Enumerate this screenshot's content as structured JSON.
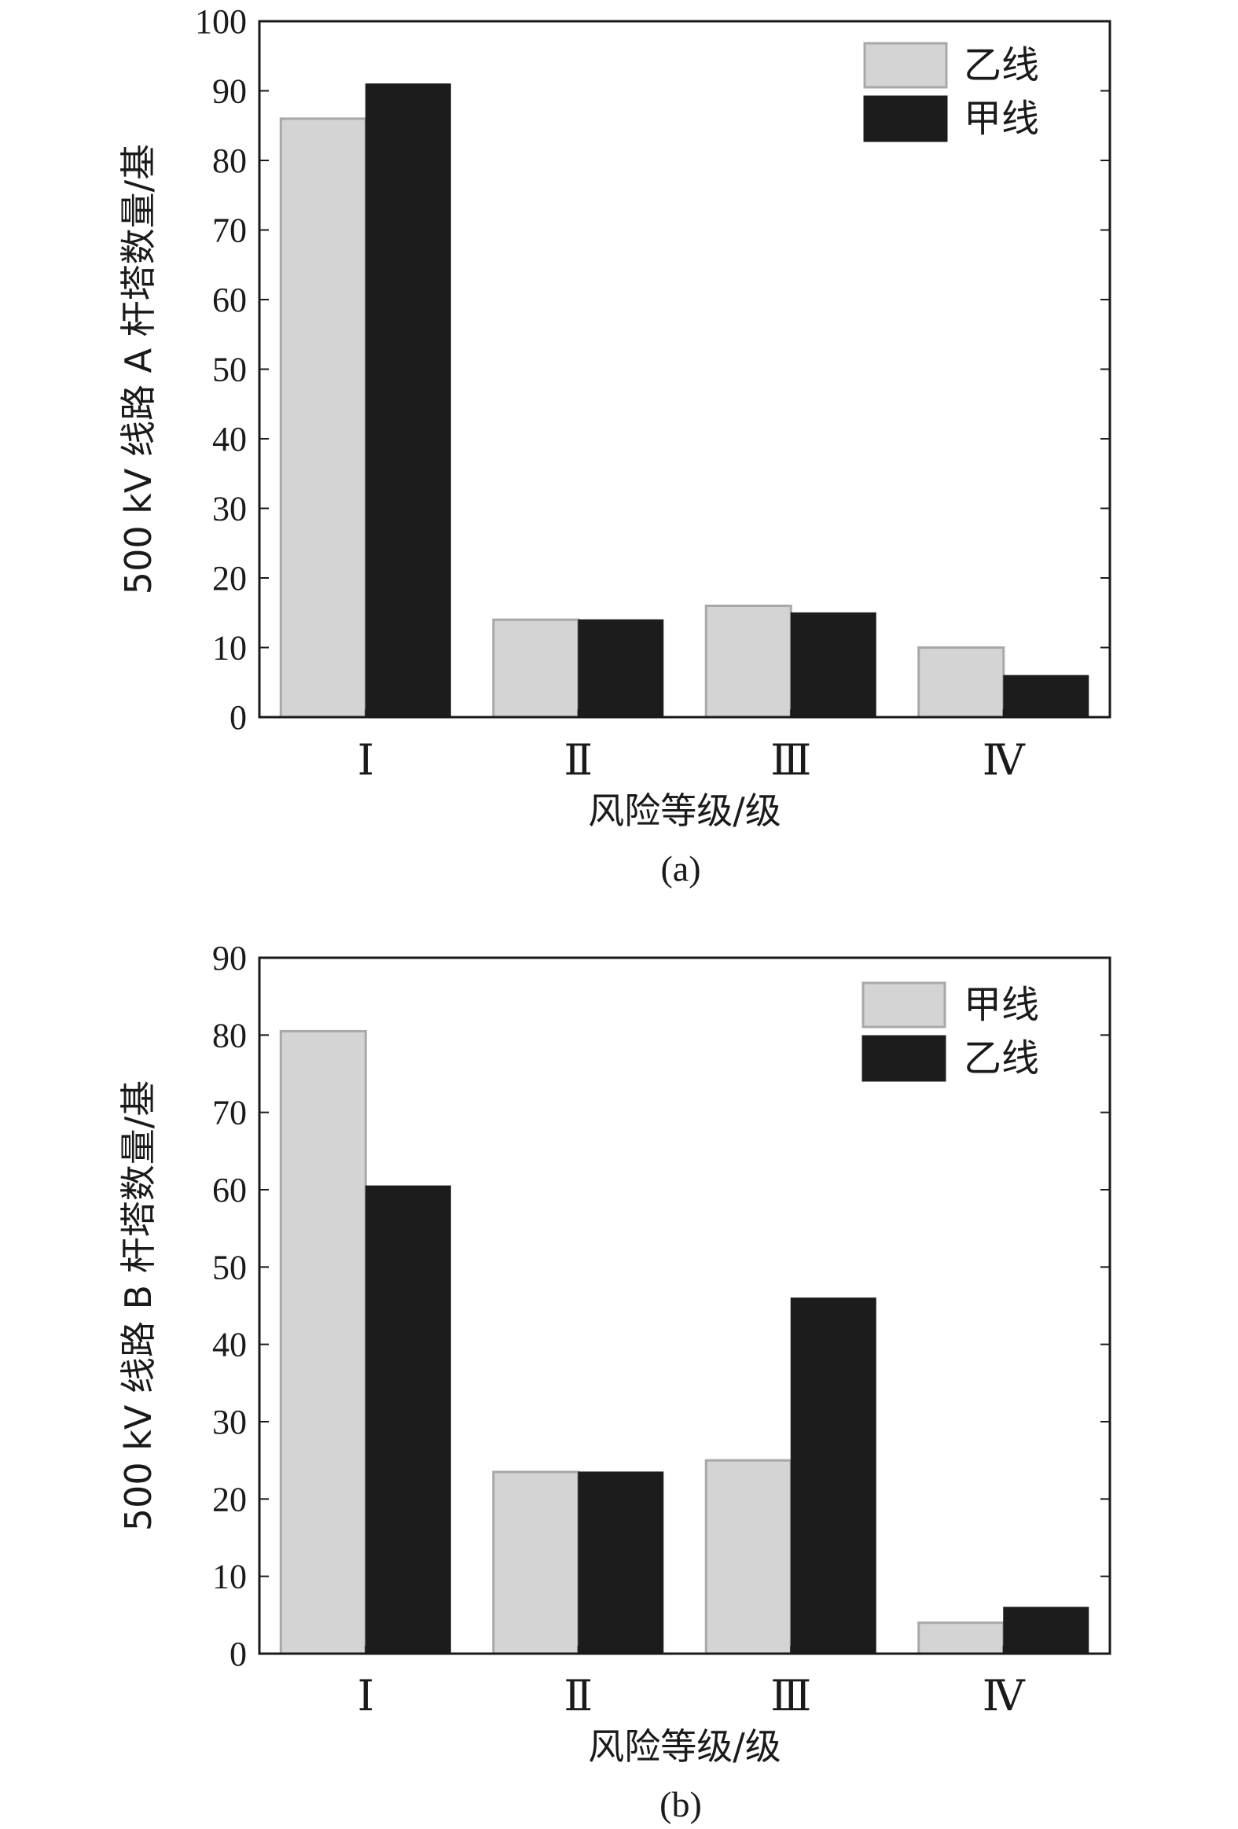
{
  "colors": {
    "light": "#d4d4d4",
    "light_edge": "#a8a8a8",
    "dark": "#1c1c1c",
    "axis": "#1a1a1a"
  },
  "chart_data": [
    {
      "type": "bar",
      "caption": "(a)",
      "categories": [
        "Ⅰ",
        "Ⅱ",
        "Ⅲ",
        "Ⅳ"
      ],
      "ylim": [
        0,
        100
      ],
      "yticks": [
        "0",
        "10",
        "20",
        "30",
        "40",
        "50",
        "60",
        "70",
        "80",
        "90",
        "100"
      ],
      "xlabel": "风险等级/级",
      "ylabel": "500 kV 线路 A 杆塔数量/基",
      "legend_position": "top-right",
      "series": [
        {
          "name": "乙线",
          "style": "light",
          "values": [
            86,
            14,
            16,
            10
          ]
        },
        {
          "name": "甲线",
          "style": "dark",
          "values": [
            91,
            14,
            15,
            6
          ]
        }
      ]
    },
    {
      "type": "bar",
      "caption": "(b)",
      "categories": [
        "Ⅰ",
        "Ⅱ",
        "Ⅲ",
        "Ⅳ"
      ],
      "ylim": [
        0,
        90
      ],
      "yticks": [
        "0",
        "10",
        "20",
        "30",
        "40",
        "50",
        "60",
        "70",
        "80",
        "90"
      ],
      "xlabel": "风险等级/级",
      "ylabel": "500 kV 线路 B 杆塔数量/基",
      "legend_position": "top-right",
      "series": [
        {
          "name": "甲线",
          "style": "light",
          "values": [
            80.5,
            23.5,
            25,
            4
          ]
        },
        {
          "name": "乙线",
          "style": "dark",
          "values": [
            60.5,
            23.5,
            46,
            6
          ]
        }
      ]
    }
  ]
}
